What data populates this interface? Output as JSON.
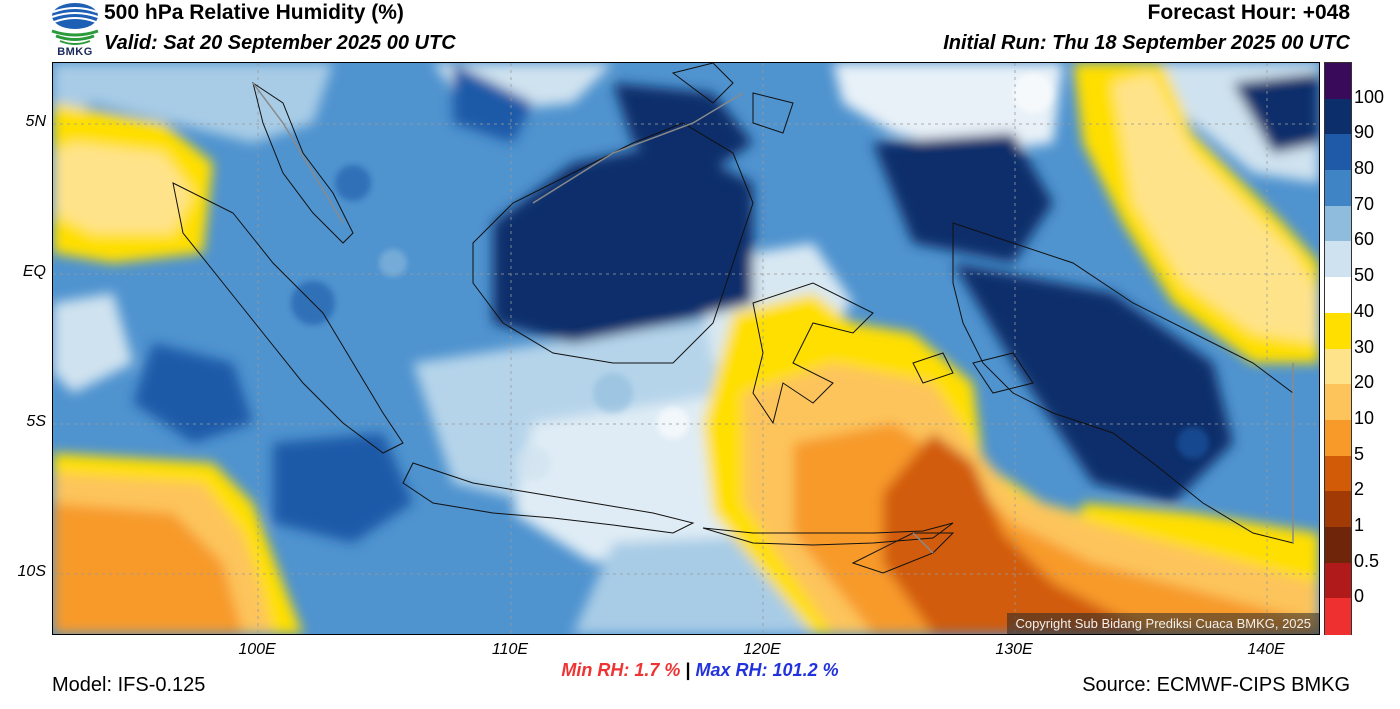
{
  "header": {
    "logo_text": "BMKG",
    "title": "500 hPa Relative Humidity (%)",
    "valid": "Valid: Sat 20 September 2025 00 UTC",
    "forecast_hour": "Forecast Hour: +048",
    "initial_run": "Initial Run: Thu 18 September 2025 00 UTC"
  },
  "map": {
    "lat_labels": [
      "5N",
      "EQ",
      "5S",
      "10S"
    ],
    "lon_labels": [
      "100E",
      "110E",
      "120E",
      "130E",
      "140E"
    ],
    "copyright": "Copyright Sub Bidang Prediksi Cuaca BMKG, 2025"
  },
  "colorbar": {
    "labels": [
      "100",
      "90",
      "80",
      "70",
      "60",
      "50",
      "40",
      "30",
      "20",
      "10",
      "5",
      "2",
      "1",
      "0.5",
      "0"
    ],
    "colors": [
      "#3a0a5a",
      "#0c2e6a",
      "#1f5aa8",
      "#3f84c4",
      "#8fbcdc",
      "#cfe2ef",
      "#ffffff",
      "#ffdf00",
      "#ffe38a",
      "#fdc45c",
      "#f79a2a",
      "#d15b07",
      "#a13a05",
      "#6e250a",
      "#b01a1a",
      "#ee3030"
    ]
  },
  "footer": {
    "min_label": "Min RH:",
    "min_value": "1.7 %",
    "separator": "|",
    "max_label": "Max RH:",
    "max_value": "101.2 %",
    "model": "Model: IFS-0.125",
    "source": "Source: ECMWF-CIPS BMKG"
  }
}
